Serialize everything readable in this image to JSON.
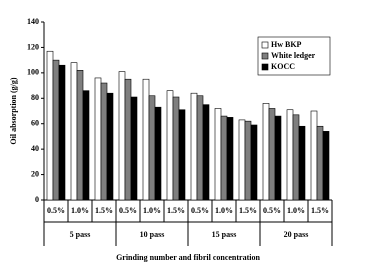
{
  "chart_data": {
    "type": "bar",
    "y_label": "Oil absorption (g/g)",
    "x_label": "Grinding number and fibril concentration",
    "categories": [
      "0.5%",
      "1.0%",
      "1.5%",
      "0.5%",
      "1.0%",
      "1.5%",
      "0.5%",
      "1.0%",
      "1.5%",
      "0.5%",
      "1.0%",
      "1.5%"
    ],
    "groups": [
      "5 pass",
      "10 pass",
      "15 pass",
      "20 pass"
    ],
    "series": [
      {
        "name": "Hw BKP",
        "color": "#ffffff",
        "values": [
          117,
          108,
          96,
          101,
          95,
          86,
          84,
          72,
          63,
          76,
          71,
          70
        ]
      },
      {
        "name": "White ledger",
        "color": "#7f7f7f",
        "values": [
          110,
          102,
          92,
          95,
          82,
          81,
          82,
          66,
          62,
          72,
          67,
          58
        ]
      },
      {
        "name": "KOCC",
        "color": "#000000",
        "values": [
          106,
          86,
          84,
          81,
          73,
          71,
          75,
          65,
          59,
          66,
          58,
          54
        ]
      }
    ],
    "ylim": [
      0,
      140
    ],
    "yticks": [
      0,
      20,
      40,
      60,
      80,
      100,
      120,
      140
    ],
    "grid": false,
    "legend": "upper-right"
  }
}
